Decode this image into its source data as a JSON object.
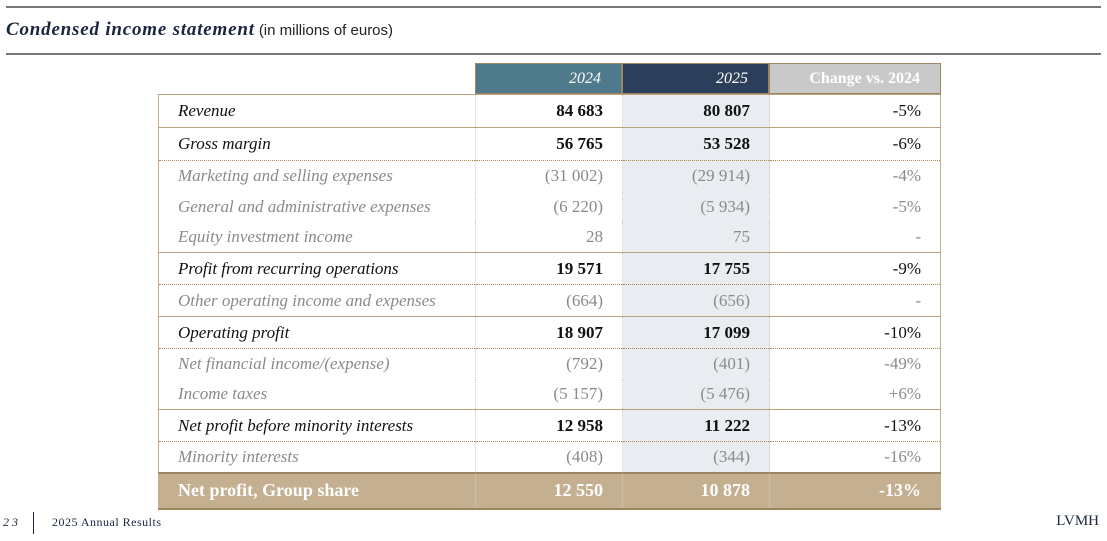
{
  "title": "Condensed income statement",
  "subtitle": "(in millions of euros)",
  "columns": [
    "2024",
    "2025",
    "Change vs. 2024"
  ],
  "rows": [
    {
      "label": "Revenue",
      "y2024": "84 683",
      "y2025": "80 807",
      "change": "-5%",
      "type": "major"
    },
    {
      "label": "Gross margin",
      "y2024": "56 765",
      "y2025": "53 528",
      "change": "-6%",
      "type": "major"
    },
    {
      "label": "Marketing and selling expenses",
      "y2024": "(31 002)",
      "y2025": "(29 914)",
      "change": "-4%",
      "type": "minor dot"
    },
    {
      "label": "General and administrative expenses",
      "y2024": "(6 220)",
      "y2025": "(5 934)",
      "change": "-5%",
      "type": "minor"
    },
    {
      "label": "Equity investment income",
      "y2024": "28",
      "y2025": "75",
      "change": "-",
      "type": "minor"
    },
    {
      "label": "Profit from recurring operations",
      "y2024": "19 571",
      "y2025": "17 755",
      "change": "-9%",
      "type": "major"
    },
    {
      "label": "Other operating income and expenses",
      "y2024": "(664)",
      "y2025": "(656)",
      "change": "-",
      "type": "minor dot"
    },
    {
      "label": "Operating profit",
      "y2024": "18 907",
      "y2025": "17 099",
      "change": "-10%",
      "type": "major"
    },
    {
      "label": "Net financial income/(expense)",
      "y2024": "(792)",
      "y2025": "(401)",
      "change": "-49%",
      "type": "minor dot"
    },
    {
      "label": "Income taxes",
      "y2024": "(5 157)",
      "y2025": "(5 476)",
      "change": "+6%",
      "type": "minor"
    },
    {
      "label": "Net profit before minority interests",
      "y2024": "12 958",
      "y2025": "11 222",
      "change": "-13%",
      "type": "major"
    },
    {
      "label": "Minority interests",
      "y2024": "(408)",
      "y2025": "(344)",
      "change": "-16%",
      "type": "minor dot"
    },
    {
      "label": "Net profit, Group share",
      "y2024": "12 550",
      "y2025": "10 878",
      "change": "-13%",
      "type": "total"
    }
  ],
  "footer": {
    "page": "23",
    "doc": "2025 Annual Results",
    "brand": "LVMH"
  },
  "colors": {
    "h2024": "#4f7a8b",
    "h2025": "#2c3f5a",
    "hchange": "#c9c9c9",
    "total": "#c4b091",
    "gold": "#a8864c"
  }
}
